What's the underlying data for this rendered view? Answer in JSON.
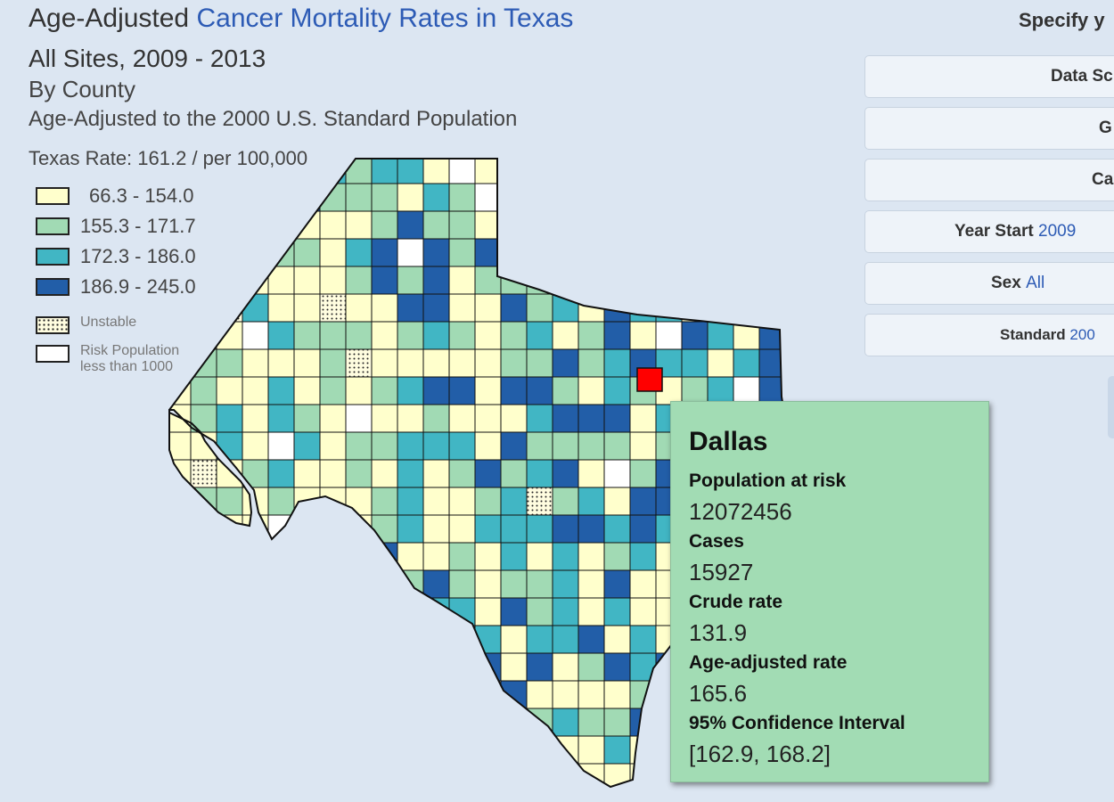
{
  "header": {
    "title_prefix": "Age-Adjusted",
    "title_link": "Cancer Mortality Rates in Texas",
    "sites_years": "All Sites, 2009 - 2013",
    "by": "By County",
    "standard": "Age-Adjusted to the 2000 U.S. Standard Population",
    "state_rate": "Texas Rate: 161.2 / per 100,000"
  },
  "legend": {
    "classes": [
      {
        "label": "66.3 - 154.0",
        "color": "#ffffcc"
      },
      {
        "label": "155.3 - 171.7",
        "color": "#a1dab4"
      },
      {
        "label": "172.3 - 186.0",
        "color": "#41b6c4"
      },
      {
        "label": "186.9 - 245.0",
        "color": "#225ea8"
      }
    ],
    "unstable": "Unstable",
    "small_pop_line1": "Risk Population",
    "small_pop_line2": "less than 1000"
  },
  "map": {
    "selected_county": "Dallas",
    "selected_color": "#ff0000"
  },
  "panel": {
    "heading": "Specify y",
    "buttons": [
      {
        "label": "Data Sc",
        "value": ""
      },
      {
        "label": "G",
        "value": ""
      },
      {
        "label": "Ca",
        "value": ""
      },
      {
        "label": "Year Start",
        "value": "2009"
      },
      {
        "label": "Sex",
        "value": "All"
      },
      {
        "label": "Standard",
        "value": "200"
      }
    ]
  },
  "tooltip": {
    "county": "Dallas",
    "pop_label": "Population at risk",
    "pop_value": "12072456",
    "cases_label": "Cases",
    "cases_value": "15927",
    "crude_label": "Crude rate",
    "crude_value": "131.9",
    "adj_label": "Age-adjusted rate",
    "adj_value": "165.6",
    "ci_label": "95% Confidence Interval",
    "ci_value": "[162.9, 168.2]"
  }
}
